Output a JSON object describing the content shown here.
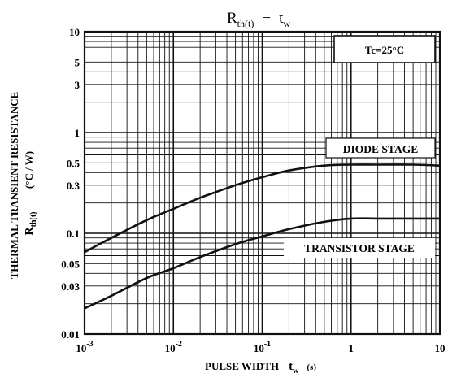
{
  "chart_data": {
    "type": "line",
    "title": "Rth(t) − tw",
    "title_parts": {
      "main": "R",
      "main_sub": "th(t)",
      "sep": "−",
      "var": "t",
      "var_sub": "w"
    },
    "xlabel": "PULSE WIDTH",
    "xlabel_symbol": "t",
    "xlabel_symbol_sub": "w",
    "xlabel_unit": "(s)",
    "ylabel": "THERMAL TRANSIENT RESISTANCE",
    "ylabel_symbol": "R",
    "ylabel_symbol_sub": "th(t)",
    "ylabel_unit": "(°C / W)",
    "xscale": "log",
    "yscale": "log",
    "xlim": [
      0.001,
      10
    ],
    "ylim": [
      0.01,
      10
    ],
    "grid": true,
    "x_ticks": [
      {
        "base": "10",
        "exp": "-3"
      },
      {
        "base": "10",
        "exp": "-2"
      },
      {
        "base": "10",
        "exp": "-1"
      },
      {
        "base": "1",
        "exp": ""
      },
      {
        "base": "10",
        "exp": ""
      }
    ],
    "y_ticks": [
      "10",
      "5",
      "3",
      "1",
      "0.5",
      "0.3",
      "0.1",
      "0.05",
      "0.03",
      "0.01"
    ],
    "y_tick_values": [
      10,
      5,
      3,
      1,
      0.5,
      0.3,
      0.1,
      0.05,
      0.03,
      0.01
    ],
    "condition": "Tc=25°C",
    "series": [
      {
        "name": "DIODE STAGE",
        "x": [
          0.001,
          0.002,
          0.005,
          0.01,
          0.02,
          0.05,
          0.1,
          0.2,
          0.5,
          1,
          2,
          5,
          10
        ],
        "y": [
          0.065,
          0.09,
          0.135,
          0.175,
          0.225,
          0.3,
          0.36,
          0.42,
          0.47,
          0.48,
          0.48,
          0.48,
          0.47
        ]
      },
      {
        "name": "TRANSISTOR STAGE",
        "x": [
          0.001,
          0.002,
          0.005,
          0.01,
          0.02,
          0.05,
          0.1,
          0.2,
          0.5,
          1,
          2,
          5,
          10
        ],
        "y": [
          0.018,
          0.024,
          0.036,
          0.045,
          0.058,
          0.078,
          0.093,
          0.11,
          0.13,
          0.14,
          0.14,
          0.14,
          0.14
        ]
      }
    ]
  }
}
